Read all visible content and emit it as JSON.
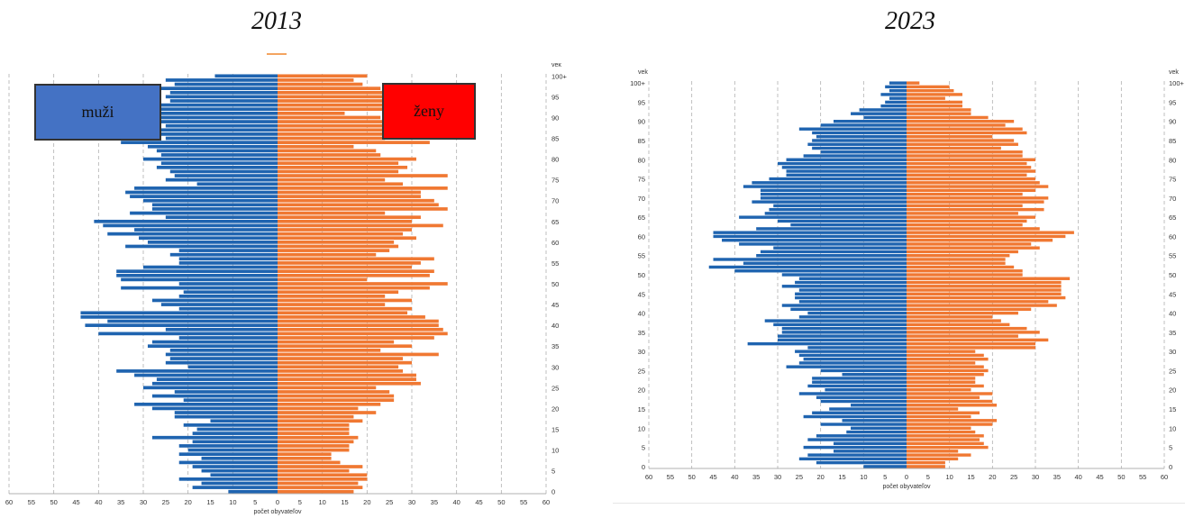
{
  "titles": {
    "left": "2013",
    "right": "2023"
  },
  "legend": {
    "male": "muži",
    "female": "ženy"
  },
  "colors": {
    "male": "#1f64b0",
    "female": "#f07832",
    "grid": "#b0b0b0",
    "legend_male": "#4472c4",
    "legend_female": "#ff0000"
  },
  "chart_data": [
    {
      "type": "bar",
      "orientation": "horizontal-population-pyramid",
      "title": "2013",
      "xlabel": "počet obyvateľov",
      "ylabel": "vek",
      "xlim": [
        -60,
        60
      ],
      "x_ticks": [
        "60",
        "55",
        "50",
        "45",
        "40",
        "35",
        "30",
        "25",
        "20",
        "15",
        "10",
        "5",
        "0",
        "5",
        "10",
        "15",
        "20",
        "25",
        "30",
        "35",
        "40",
        "45",
        "50",
        "55",
        "60"
      ],
      "y_ticks": [
        "0",
        "5",
        "10",
        "15",
        "20",
        "25",
        "30",
        "35",
        "40",
        "45",
        "50",
        "55",
        "60",
        "65",
        "70",
        "75",
        "80",
        "85",
        "90",
        "95",
        "100+"
      ],
      "grid": true,
      "age_range": [
        0,
        100
      ],
      "series": [
        {
          "name": "muži",
          "values": [
            11,
            19,
            17,
            22,
            15,
            17,
            19,
            22,
            17,
            22,
            20,
            22,
            19,
            28,
            19,
            18,
            21,
            15,
            23,
            23,
            28,
            32,
            21,
            28,
            23,
            30,
            28,
            27,
            32,
            36,
            20,
            25,
            24,
            25,
            24,
            29,
            28,
            22,
            40,
            25,
            43,
            38,
            44,
            44,
            22,
            26,
            28,
            22,
            21,
            35,
            22,
            35,
            36,
            36,
            30,
            22,
            22,
            24,
            22,
            34,
            29,
            31,
            38,
            32,
            39,
            41,
            25,
            33,
            28,
            28,
            30,
            33,
            34,
            32,
            18,
            25,
            23,
            24,
            27,
            26,
            30,
            26,
            27,
            29,
            35,
            25,
            29,
            35,
            25,
            28,
            26,
            27,
            33,
            31,
            24,
            25,
            24,
            35,
            23,
            25,
            14
          ]
        },
        {
          "name": "ženy",
          "values": [
            17,
            19,
            18,
            20,
            20,
            16,
            19,
            14,
            12,
            12,
            16,
            16,
            17,
            18,
            16,
            16,
            16,
            19,
            17,
            22,
            18,
            23,
            26,
            26,
            25,
            22,
            32,
            31,
            31,
            28,
            27,
            30,
            28,
            36,
            23,
            30,
            26,
            35,
            38,
            37,
            36,
            36,
            33,
            29,
            30,
            24,
            30,
            24,
            27,
            34,
            38,
            20,
            34,
            35,
            30,
            32,
            35,
            22,
            25,
            27,
            26,
            31,
            28,
            30,
            37,
            30,
            32,
            24,
            38,
            36,
            35,
            32,
            32,
            38,
            28,
            24,
            38,
            27,
            29,
            27,
            31,
            23,
            22,
            17,
            34,
            24,
            25,
            25,
            26,
            27,
            23,
            15,
            34,
            32,
            32,
            31,
            26,
            23,
            19,
            17,
            20
          ]
        }
      ]
    },
    {
      "type": "bar",
      "orientation": "horizontal-population-pyramid",
      "title": "2023",
      "xlabel": "počet obyvateľov",
      "ylabel": "vek",
      "xlim": [
        -60,
        60
      ],
      "x_ticks": [
        "60",
        "55",
        "50",
        "45",
        "40",
        "35",
        "30",
        "25",
        "20",
        "15",
        "10",
        "5",
        "0",
        "5",
        "10",
        "15",
        "20",
        "25",
        "30",
        "35",
        "40",
        "45",
        "50",
        "55",
        "60"
      ],
      "y_ticks": [
        "0",
        "5",
        "10",
        "15",
        "20",
        "25",
        "30",
        "35",
        "40",
        "45",
        "50",
        "55",
        "60",
        "65",
        "70",
        "75",
        "80",
        "85",
        "90",
        "95",
        "100+"
      ],
      "grid": true,
      "age_range": [
        0,
        100
      ],
      "series": [
        {
          "name": "muži",
          "values": [
            10,
            21,
            25,
            23,
            17,
            24,
            17,
            23,
            21,
            14,
            13,
            20,
            15,
            24,
            22,
            18,
            13,
            20,
            21,
            25,
            19,
            23,
            22,
            22,
            15,
            20,
            28,
            25,
            24,
            25,
            26,
            23,
            37,
            30,
            30,
            29,
            29,
            31,
            33,
            25,
            23,
            27,
            29,
            25,
            26,
            26,
            25,
            29,
            26,
            25,
            29,
            40,
            46,
            38,
            45,
            35,
            34,
            31,
            39,
            43,
            45,
            45,
            35,
            27,
            30,
            39,
            33,
            32,
            31,
            36,
            34,
            34,
            34,
            38,
            36,
            32,
            28,
            28,
            29,
            30,
            28,
            24,
            20,
            22,
            23,
            22,
            21,
            22,
            25,
            20,
            17,
            10,
            13,
            11,
            6,
            5,
            4,
            6,
            4,
            5,
            4
          ]
        },
        {
          "name": "ženy",
          "values": [
            9,
            9,
            12,
            15,
            12,
            19,
            18,
            17,
            18,
            16,
            15,
            20,
            21,
            15,
            17,
            12,
            21,
            20,
            17,
            20,
            15,
            18,
            16,
            16,
            18,
            19,
            18,
            16,
            19,
            18,
            16,
            30,
            30,
            33,
            26,
            31,
            28,
            24,
            22,
            20,
            26,
            29,
            35,
            33,
            37,
            36,
            36,
            36,
            36,
            38,
            27,
            27,
            25,
            23,
            23,
            24,
            26,
            31,
            29,
            34,
            37,
            39,
            31,
            27,
            28,
            30,
            26,
            32,
            27,
            32,
            33,
            27,
            30,
            33,
            31,
            30,
            28,
            30,
            29,
            28,
            30,
            27,
            27,
            22,
            26,
            25,
            20,
            28,
            27,
            23,
            25,
            19,
            15,
            15,
            13,
            13,
            9,
            13,
            11,
            10,
            3
          ]
        }
      ]
    }
  ]
}
